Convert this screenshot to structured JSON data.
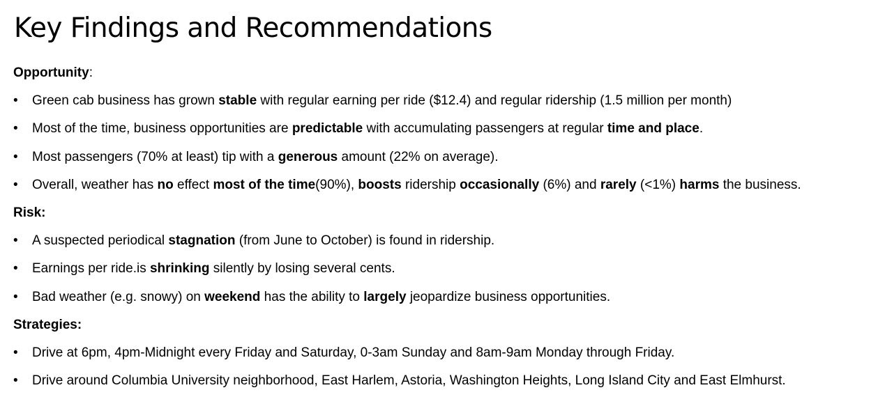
{
  "title": "Key Findings and Recommendations",
  "bullet_char": "•",
  "sections": [
    {
      "heading": "Opportunity",
      "heading_suffix": ":",
      "items": [
        [
          {
            "t": "Green cab business has grown "
          },
          {
            "t": "stable",
            "b": true
          },
          {
            "t": " with regular earning per ride ($12.4) and regular ridership (1.5 million per month)"
          }
        ],
        [
          {
            "t": "Most of the time, business opportunities are "
          },
          {
            "t": "predictable",
            "b": true
          },
          {
            "t": " with accumulating passengers at regular "
          },
          {
            "t": "time and place",
            "b": true
          },
          {
            "t": "."
          }
        ],
        [
          {
            "t": "Most passengers (70% at least) tip with a "
          },
          {
            "t": "generous",
            "b": true
          },
          {
            "t": " amount (22% on average)."
          }
        ],
        [
          {
            "t": "Overall, weather has "
          },
          {
            "t": "no",
            "b": true
          },
          {
            "t": " effect "
          },
          {
            "t": "most of the time",
            "b": true
          },
          {
            "t": "(90%), "
          },
          {
            "t": "boosts",
            "b": true
          },
          {
            "t": " ridership "
          },
          {
            "t": "occasionally",
            "b": true
          },
          {
            "t": " (6%) and "
          },
          {
            "t": "rarely",
            "b": true
          },
          {
            "t": " (<1%) "
          },
          {
            "t": "harms",
            "b": true
          },
          {
            "t": " the business."
          }
        ]
      ]
    },
    {
      "heading": "Risk:",
      "heading_suffix": "",
      "items": [
        [
          {
            "t": "A suspected periodical "
          },
          {
            "t": "stagnation",
            "b": true
          },
          {
            "t": " (from June to October) is found in ridership."
          }
        ],
        [
          {
            "t": "Earnings per ride.is "
          },
          {
            "t": "shrinking",
            "b": true
          },
          {
            "t": " silently by losing several cents."
          }
        ],
        [
          {
            "t": "Bad weather (e.g. snowy) on "
          },
          {
            "t": "weekend",
            "b": true
          },
          {
            "t": " has the ability to "
          },
          {
            "t": "largely",
            "b": true
          },
          {
            "t": " jeopardize business opportunities."
          }
        ]
      ]
    },
    {
      "heading": "Strategies:",
      "heading_suffix": "",
      "items": [
        [
          {
            "t": "Drive at 6pm, 4pm-Midnight every Friday and Saturday, 0-3am Sunday and 8am-9am Monday through Friday."
          }
        ],
        [
          {
            "t": "Drive around Columbia University neighborhood, East Harlem, Astoria, Washington Heights, Long Island City and East Elmhurst."
          }
        ]
      ]
    }
  ]
}
